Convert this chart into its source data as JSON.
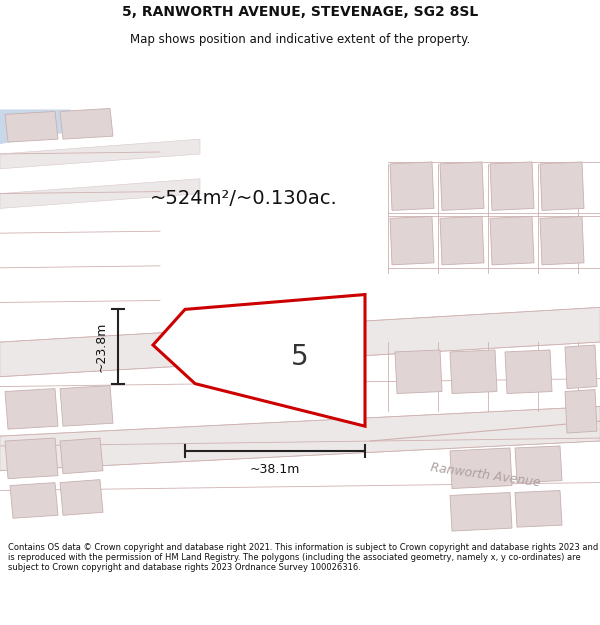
{
  "title_line1": "5, RANWORTH AVENUE, STEVENAGE, SG2 8SL",
  "title_line2": "Map shows position and indicative extent of the property.",
  "area_text": "~524m²/~0.130ac.",
  "dim_width": "~38.1m",
  "dim_height": "~23.8m",
  "number_label": "5",
  "street_label1": "Ranworth Avenue",
  "street_label2": "Ranworth Avenue",
  "footer_text": "Contains OS data © Crown copyright and database right 2021. This information is subject to Crown copyright and database rights 2023 and is reproduced with the permission of HM Land Registry. The polygons (including the associated geometry, namely x, y co-ordinates) are subject to Crown copyright and database rights 2023 Ordnance Survey 100026316.",
  "map_bg": "#f7f5f5",
  "road_fill": "#ede8e8",
  "road_edge": "#d8c8c8",
  "bldg_fill": "#e0d4d4",
  "bldg_edge": "#c8b0b0",
  "plot_edge": "#cc0000",
  "plot_fill": "#ffffff",
  "dim_color": "#222222",
  "street_color": "#b0a0a0",
  "blue_area": "#c8d8e8"
}
